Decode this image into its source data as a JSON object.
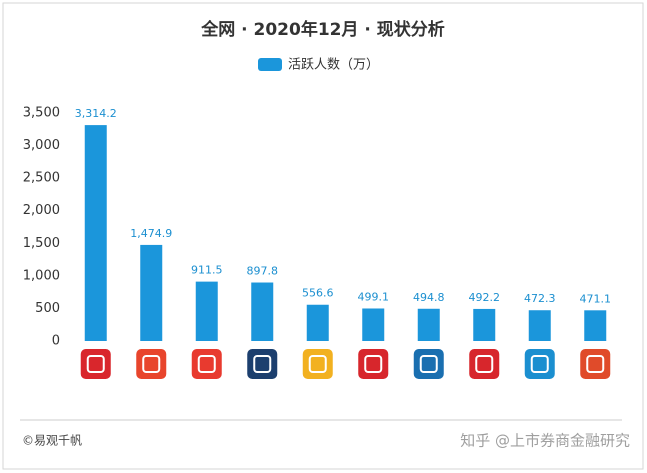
{
  "chart_data": {
    "type": "bar",
    "title": "全网 · 2020年12月 · 现状分析",
    "categories": [
      null,
      null,
      null,
      null,
      null,
      null,
      null,
      null,
      null,
      null
    ],
    "series": [
      {
        "name": "活跃人数（万）",
        "color": "#1b96db",
        "values": [
          3314.2,
          1474.9,
          911.5,
          897.8,
          556.6,
          499.1,
          494.8,
          492.2,
          472.3,
          471.1
        ],
        "value_labels": [
          "3,314.2",
          "1,474.9",
          "911.5",
          "897.8",
          "556.6",
          "499.1",
          "494.8",
          "492.2",
          "472.3",
          "471.1"
        ]
      }
    ],
    "ylim": [
      0,
      3500
    ],
    "yticks": [
      0,
      500,
      {
        "value": 1000,
        "label": "1,000"
      },
      {
        "value": 1500,
        "label": "1,500"
      },
      {
        "value": 2000,
        "label": "2,000"
      },
      {
        "value": 2500,
        "label": "2,500"
      },
      {
        "value": 3000,
        "label": "3,000"
      },
      {
        "value": 3500,
        "label": "3,500"
      }
    ],
    "grid": false,
    "legend": "top",
    "footer": "©易观千帆",
    "watermark": "知乎 @上市券商金融研究"
  }
}
